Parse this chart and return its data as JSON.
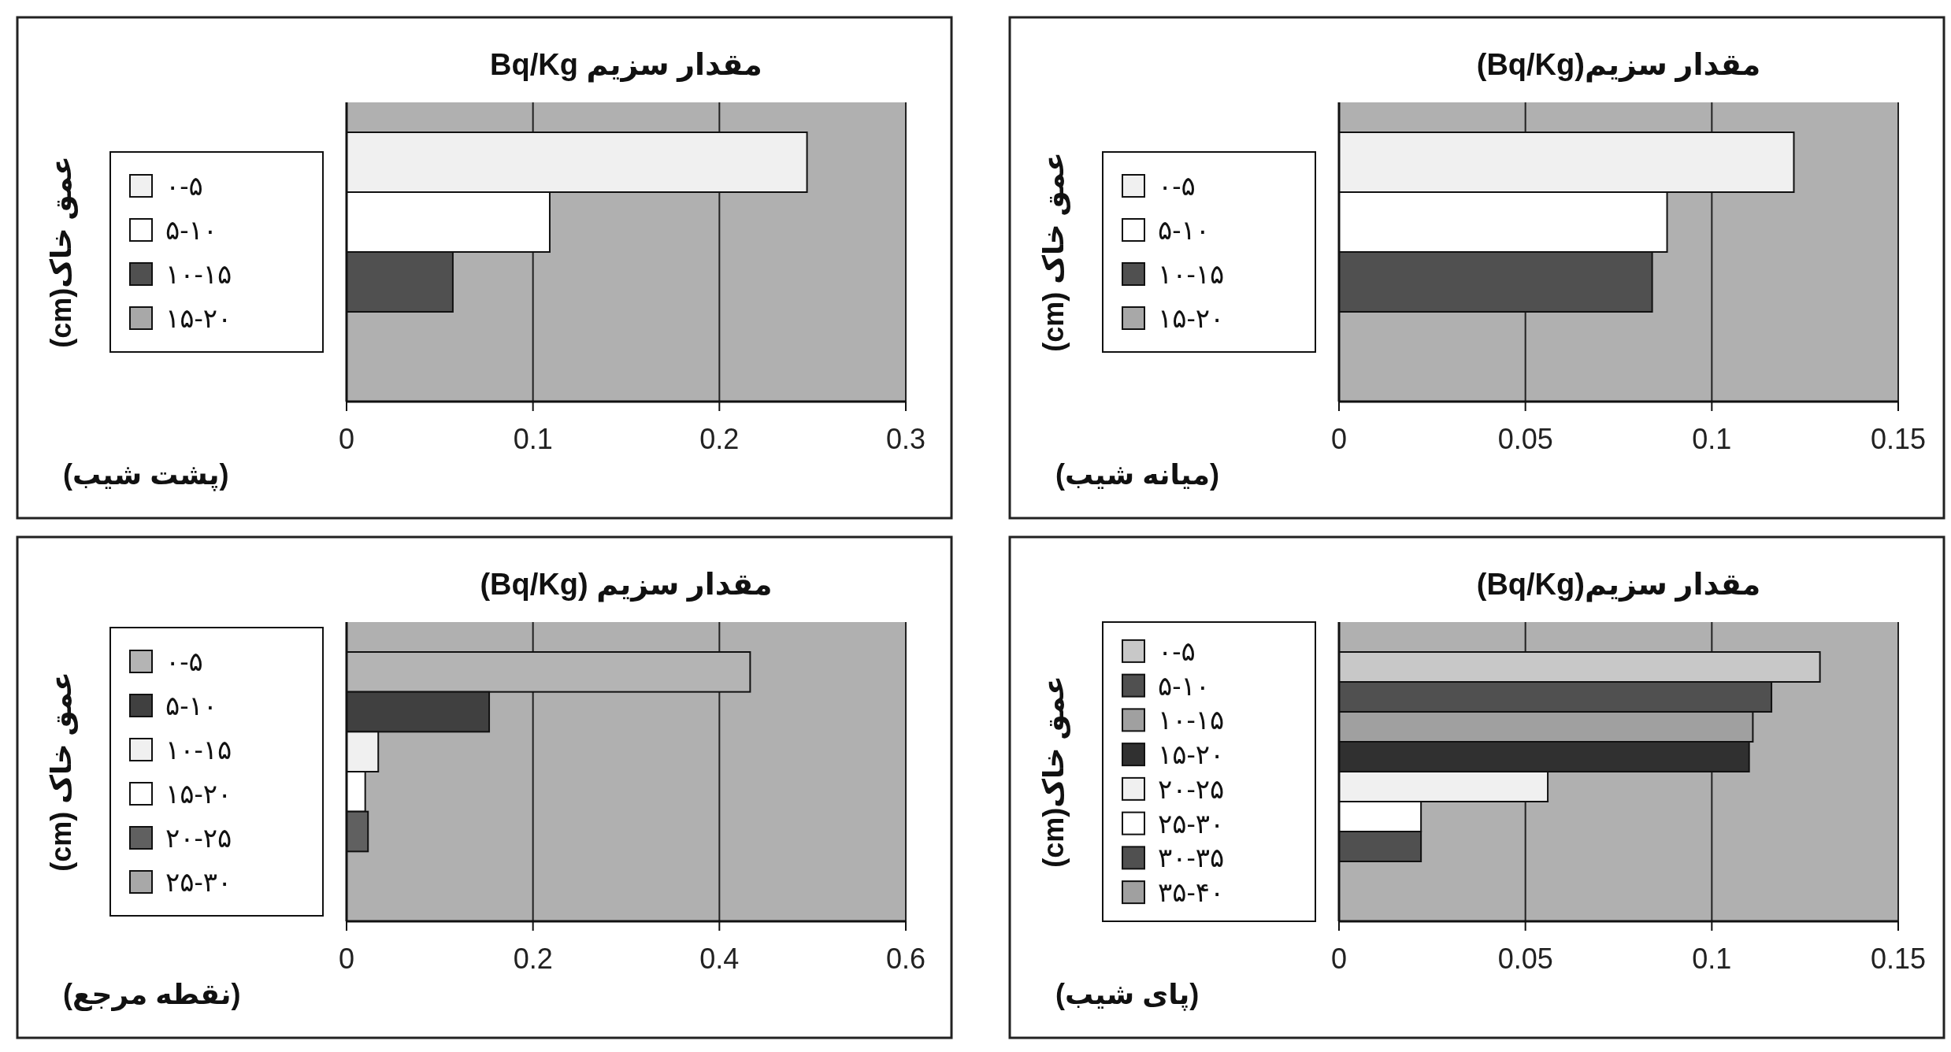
{
  "chart_data": [
    {
      "type": "bar",
      "orientation": "horizontal",
      "title": "مقدار سزیم Bq/Kg",
      "ylabel": "عمق خاک(cm)",
      "annotations": [
        "(پشت شیب)"
      ],
      "categories": [
        null
      ],
      "series": [
        {
          "name": "۰-۵",
          "color": "#f0f0f0",
          "values": [
            0.247
          ]
        },
        {
          "name": "۵-۱۰",
          "color": "#ffffff",
          "values": [
            0.109
          ]
        },
        {
          "name": "۱۰-۱۵",
          "color": "#505050",
          "values": [
            0.057
          ]
        },
        {
          "name": "۱۵-۲۰",
          "color": "#a8a8a8",
          "values": [
            null
          ]
        }
      ],
      "xlim": [
        0,
        0.3
      ],
      "xticks": [
        0,
        0.1,
        0.2,
        0.3
      ],
      "grid": "x",
      "legend": "left"
    },
    {
      "type": "bar",
      "orientation": "horizontal",
      "title": "مقدار سزیم(Bq/Kg)",
      "ylabel": "عمق خاک (cm)",
      "annotations": [
        "(میانه شیب)"
      ],
      "categories": [
        null
      ],
      "series": [
        {
          "name": "۰-۵",
          "color": "#f0f0f0",
          "values": [
            0.122
          ]
        },
        {
          "name": "۵-۱۰",
          "color": "#ffffff",
          "values": [
            0.088
          ]
        },
        {
          "name": "۱۰-۱۵",
          "color": "#505050",
          "values": [
            0.084
          ]
        },
        {
          "name": "۱۵-۲۰",
          "color": "#a8a8a8",
          "values": [
            null
          ]
        }
      ],
      "xlim": [
        0,
        0.15
      ],
      "xticks": [
        0,
        0.05,
        0.1,
        0.15
      ],
      "grid": "x",
      "legend": "left"
    },
    {
      "type": "bar",
      "orientation": "horizontal",
      "title": "مقدار سزیم (Bq/Kg)",
      "ylabel": "عمق خاک (cm)",
      "annotations": [
        "(نقطه مرجع)"
      ],
      "categories": [
        null
      ],
      "series": [
        {
          "name": "۰-۵",
          "color": "#b4b4b4",
          "values": [
            0.433
          ]
        },
        {
          "name": "۵-۱۰",
          "color": "#404040",
          "values": [
            0.153
          ]
        },
        {
          "name": "۱۰-۱۵",
          "color": "#f0f0f0",
          "values": [
            0.034
          ]
        },
        {
          "name": "۱۵-۲۰",
          "color": "#ffffff",
          "values": [
            0.02
          ]
        },
        {
          "name": "۲۰-۲۵",
          "color": "#606060",
          "values": [
            0.023
          ]
        },
        {
          "name": "۲۵-۳۰",
          "color": "#a8a8a8",
          "values": [
            null
          ]
        }
      ],
      "xlim": [
        0,
        0.6
      ],
      "xticks": [
        0,
        0.2,
        0.4,
        0.6
      ],
      "grid": "x",
      "legend": "left"
    },
    {
      "type": "bar",
      "orientation": "horizontal",
      "title": "مقدار سزیم(Bq/Kg)",
      "ylabel": "عمق خاک(cm)",
      "annotations": [
        "(پای شیب)"
      ],
      "categories": [
        null
      ],
      "series": [
        {
          "name": "۰-۵",
          "color": "#c8c8c8",
          "values": [
            0.129
          ]
        },
        {
          "name": "۵-۱۰",
          "color": "#505050",
          "values": [
            0.116
          ]
        },
        {
          "name": "۱۰-۱۵",
          "color": "#a0a0a0",
          "values": [
            0.111
          ]
        },
        {
          "name": "۱۵-۲۰",
          "color": "#303030",
          "values": [
            0.11
          ]
        },
        {
          "name": "۲۰-۲۵",
          "color": "#f0f0f0",
          "values": [
            0.056
          ]
        },
        {
          "name": "۲۵-۳۰",
          "color": "#ffffff",
          "values": [
            0.022
          ]
        },
        {
          "name": "۳۰-۳۵",
          "color": "#505050",
          "values": [
            0.022
          ]
        },
        {
          "name": "۳۵-۴۰",
          "color": "#a0a0a0",
          "values": [
            null
          ]
        }
      ],
      "xlim": [
        0,
        0.15
      ],
      "xticks": [
        0,
        0.05,
        0.1,
        0.15
      ],
      "grid": "x",
      "legend": "left"
    }
  ]
}
